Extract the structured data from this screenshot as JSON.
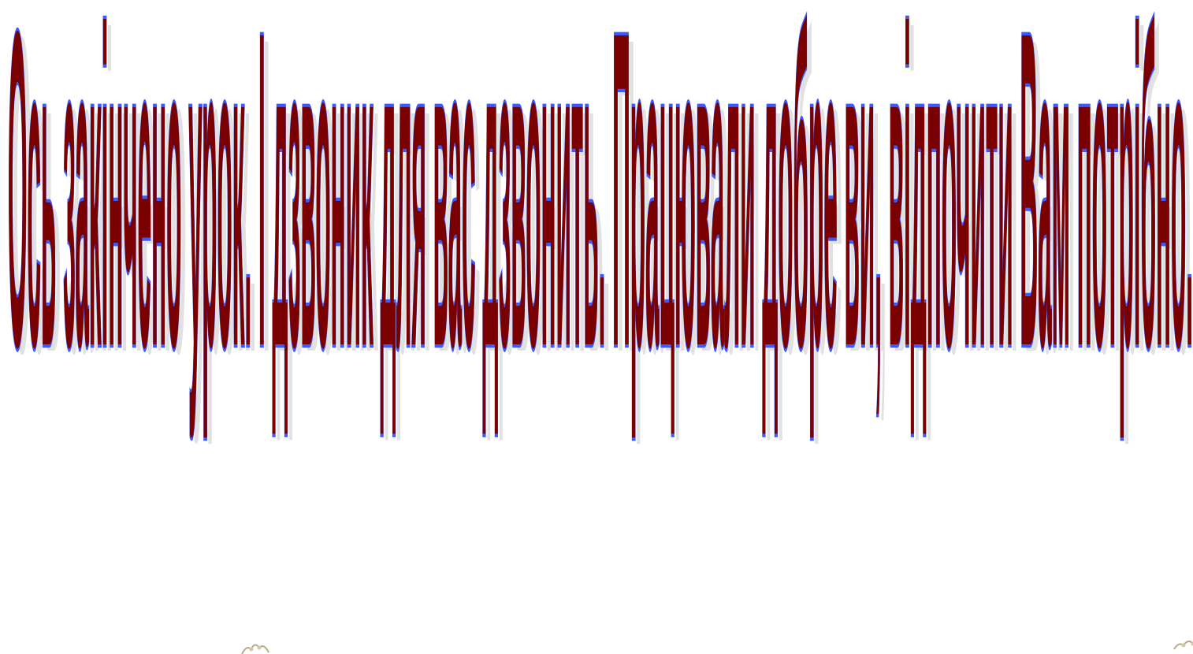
{
  "wordart": {
    "text": "Ось закінчено урок. І дзвоник для вас дзвонить. Працювали добре ви, відпочити Вам потрібно.",
    "colors": {
      "fill": "#7a0000",
      "outline": "#3b5bff",
      "shadow": "#c9c9c9",
      "background": "#ffffff"
    }
  },
  "decorations": {
    "left_icon": "flower-ornament-icon",
    "right_icon": "flower-ornament-icon"
  }
}
